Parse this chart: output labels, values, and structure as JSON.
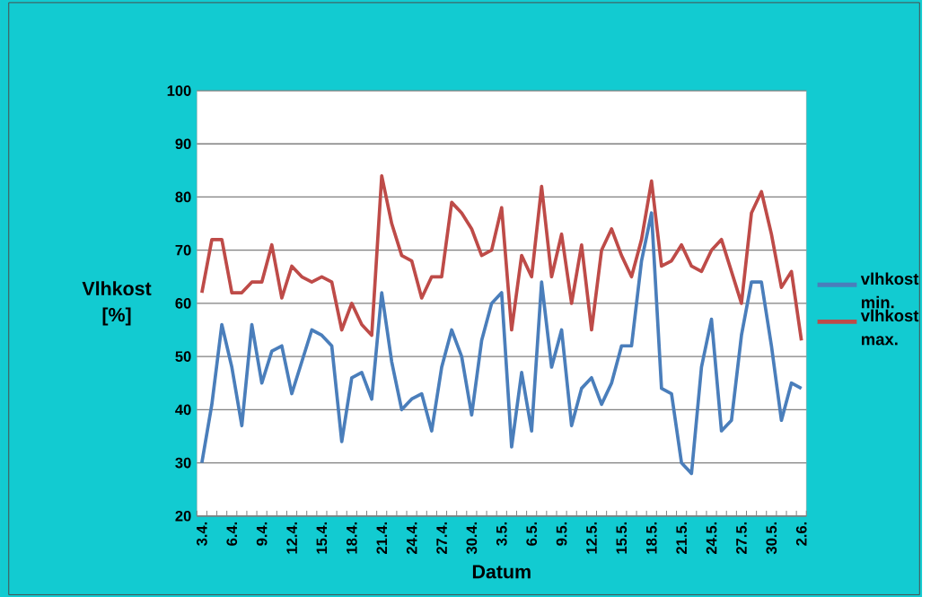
{
  "chart_data": {
    "type": "line",
    "xlabel": "Datum",
    "ylabel": "Vlhkost [%]",
    "categories": [
      "3.4.",
      null,
      null,
      "6.4.",
      null,
      null,
      "9.4.",
      null,
      null,
      "12.4.",
      null,
      null,
      "15.4.",
      null,
      null,
      "18.4.",
      null,
      null,
      "21.4.",
      null,
      null,
      "24.4.",
      null,
      null,
      "27.4.",
      null,
      null,
      "30.4.",
      null,
      null,
      "3.5.",
      null,
      null,
      "6.5.",
      null,
      null,
      "9.5.",
      null,
      null,
      "12.5.",
      null,
      null,
      "15.5.",
      null,
      null,
      "18.5.",
      null,
      null,
      "21.5.",
      null,
      null,
      "24.5.",
      null,
      null,
      "27.5.",
      null,
      null,
      "30.5.",
      null,
      null,
      "2.6."
    ],
    "series": [
      {
        "name": "vlhkost min.",
        "color": "#4a7ebb",
        "values": [
          30,
          41,
          56,
          48,
          37,
          56,
          45,
          51,
          52,
          43,
          49,
          55,
          54,
          52,
          34,
          46,
          47,
          42,
          62,
          49,
          40,
          42,
          43,
          36,
          48,
          55,
          50,
          39,
          53,
          60,
          62,
          33,
          47,
          36,
          64,
          48,
          55,
          37,
          44,
          46,
          41,
          45,
          52,
          52,
          68,
          77,
          44,
          43,
          30,
          28,
          48,
          57,
          36,
          38,
          54,
          64,
          64,
          52,
          38,
          45,
          44
        ]
      },
      {
        "name": "vlhkost max.",
        "color": "#be4b48",
        "values": [
          62,
          72,
          72,
          62,
          62,
          64,
          64,
          71,
          61,
          67,
          65,
          64,
          65,
          64,
          55,
          60,
          56,
          54,
          84,
          75,
          69,
          68,
          61,
          65,
          65,
          79,
          77,
          74,
          69,
          70,
          78,
          55,
          69,
          65,
          82,
          65,
          73,
          60,
          71,
          55,
          70,
          74,
          69,
          65,
          72,
          83,
          67,
          68,
          71,
          67,
          66,
          70,
          72,
          66,
          60,
          77,
          81,
          73,
          63,
          66,
          53
        ]
      }
    ],
    "ylim": [
      20,
      100
    ],
    "yticks": [
      20,
      30,
      40,
      50,
      60,
      70,
      80,
      90,
      100
    ],
    "grid": "y",
    "legend": "right"
  }
}
